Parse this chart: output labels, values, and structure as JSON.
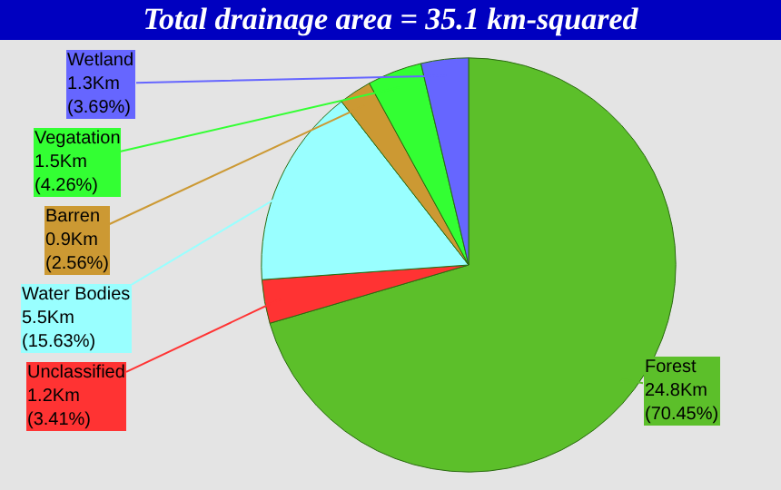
{
  "chart_data": {
    "type": "pie",
    "title": "Total drainage area = 35.1 km-squared",
    "categories": [
      "Forest",
      "Unclassified",
      "Water Bodies",
      "Barren",
      "Vegatation",
      "Wetland"
    ],
    "values": [
      24.8,
      1.2,
      5.5,
      0.9,
      1.5,
      1.3
    ],
    "colors": [
      "#5cbf2a",
      "#ff3333",
      "#99ffff",
      "#cc9933",
      "#33ff33",
      "#6666ff"
    ],
    "value_labels": [
      "24.8Km\n(70.45%)",
      "1.2Km\n(3.41%)",
      "5.5Km\n(15.63%)",
      "0.9Km\n(2.56%)",
      "1.5Km\n(4.26%)",
      "1.3Km\n(3.69%)"
    ],
    "legend": false
  }
}
